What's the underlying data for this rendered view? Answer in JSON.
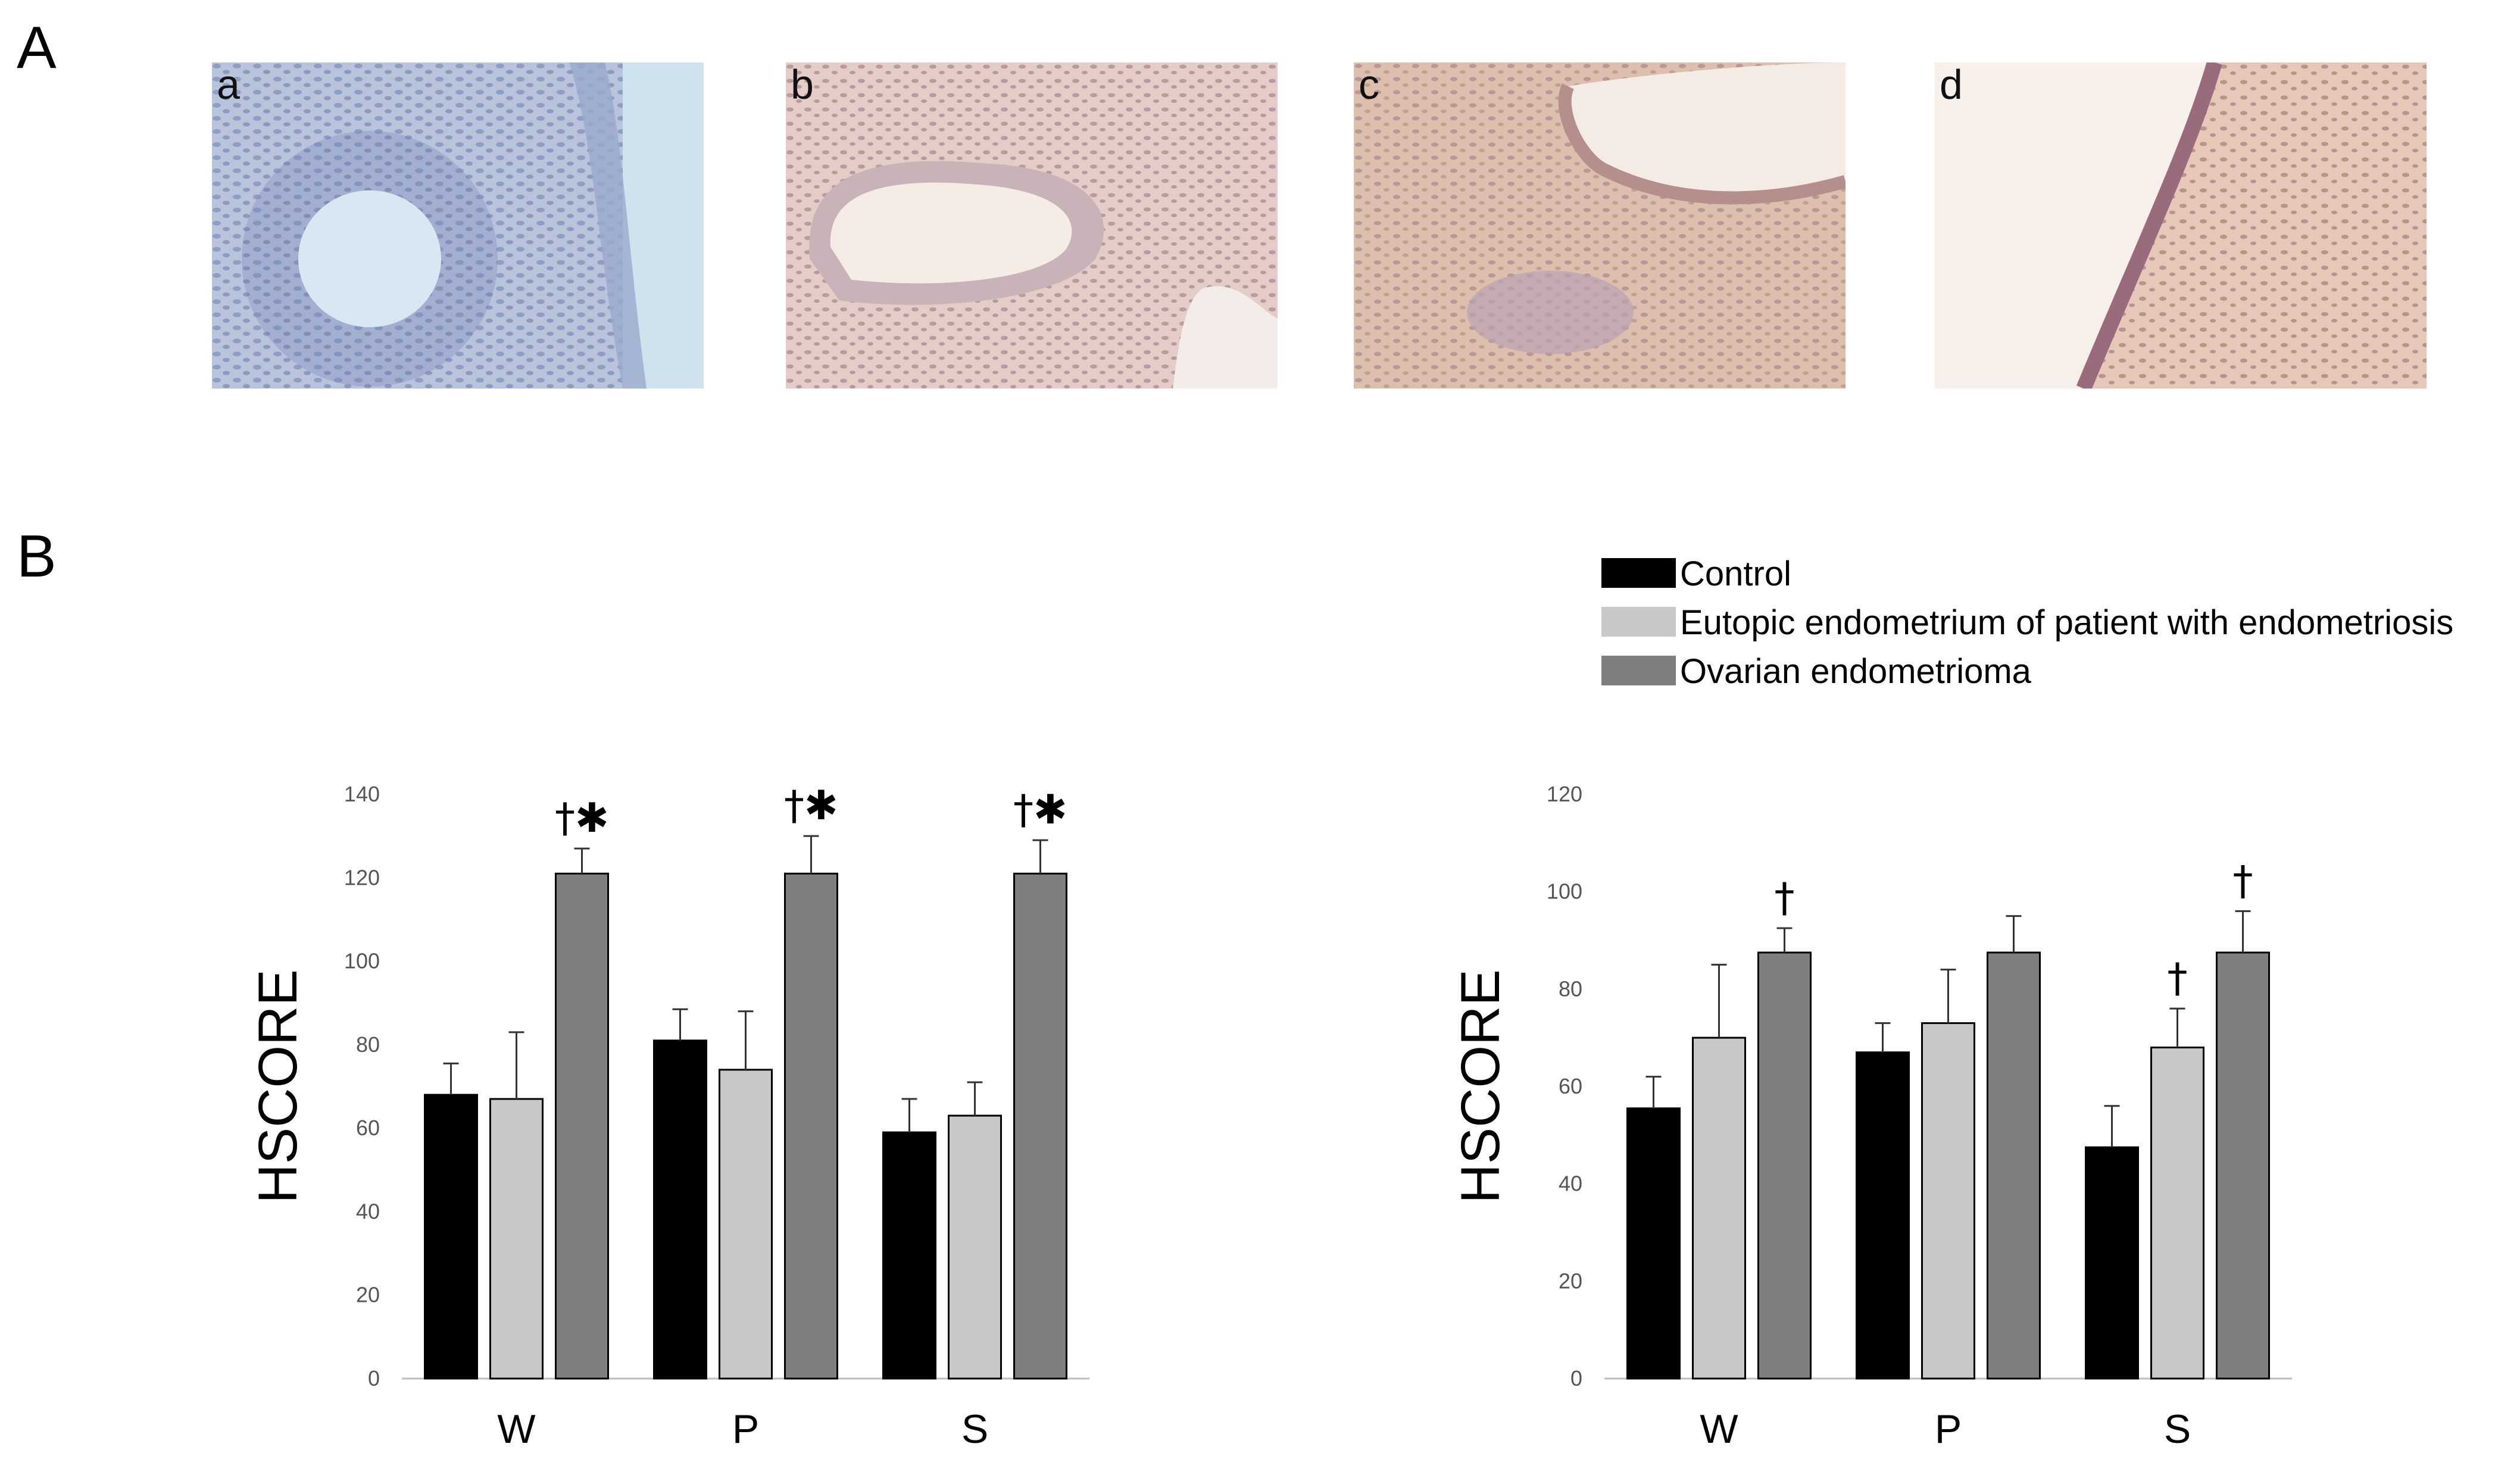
{
  "panels": {
    "A": "A",
    "B": "B"
  },
  "micrographs": [
    {
      "label": "a",
      "stain": "blue"
    },
    {
      "label": "b",
      "stain": "pink-light"
    },
    {
      "label": "c",
      "stain": "pink-medium"
    },
    {
      "label": "d",
      "stain": "pink-edge"
    }
  ],
  "legend": [
    {
      "label": "Control",
      "color": "#000000"
    },
    {
      "label": "Eutopic endometrium of patient with endometriosis",
      "color": "#c8c8c8"
    },
    {
      "label": "Ovarian endometrioma",
      "color": "#7f7f7f"
    }
  ],
  "chart_data": [
    {
      "type": "bar",
      "ylabel": "HSCORE",
      "ylim": [
        0,
        140
      ],
      "yticks": [
        0,
        20,
        40,
        60,
        80,
        100,
        120,
        140
      ],
      "categories": [
        "W",
        "P",
        "S"
      ],
      "series": [
        {
          "name": "Control",
          "color": "#000000",
          "values": [
            68,
            81,
            59
          ],
          "errors": [
            7.5,
            7.5,
            8
          ]
        },
        {
          "name": "Eutopic endometrium of patient with endometriosis",
          "color": "#c8c8c8",
          "values": [
            67,
            74,
            63
          ],
          "errors": [
            16,
            14,
            8
          ]
        },
        {
          "name": "Ovarian endometrioma",
          "color": "#7f7f7f",
          "values": [
            121,
            121,
            121
          ],
          "errors": [
            6,
            9,
            8
          ]
        }
      ],
      "annotations": [
        {
          "category": "W",
          "series": 2,
          "text": "†✱"
        },
        {
          "category": "P",
          "series": 2,
          "text": "†✱"
        },
        {
          "category": "S",
          "series": 2,
          "text": "†✱"
        }
      ]
    },
    {
      "type": "bar",
      "ylabel": "HSCORE",
      "ylim": [
        0,
        120
      ],
      "yticks": [
        0,
        20,
        40,
        60,
        80,
        100,
        120
      ],
      "categories": [
        "W",
        "P",
        "S"
      ],
      "series": [
        {
          "name": "Control",
          "color": "#000000",
          "values": [
            55.5,
            67,
            47.5
          ],
          "errors": [
            6.5,
            6,
            8.5
          ]
        },
        {
          "name": "Eutopic endometrium of patient with endometriosis",
          "color": "#c8c8c8",
          "values": [
            70,
            73,
            68
          ],
          "errors": [
            15,
            11,
            8
          ]
        },
        {
          "name": "Ovarian endometrioma",
          "color": "#7f7f7f",
          "values": [
            87.5,
            87.5,
            87.5
          ],
          "errors": [
            5,
            7.5,
            8.5
          ]
        }
      ],
      "annotations": [
        {
          "category": "W",
          "series": 2,
          "text": "†"
        },
        {
          "category": "S",
          "series": 1,
          "text": "†"
        },
        {
          "category": "S",
          "series": 2,
          "text": "†"
        }
      ]
    }
  ]
}
